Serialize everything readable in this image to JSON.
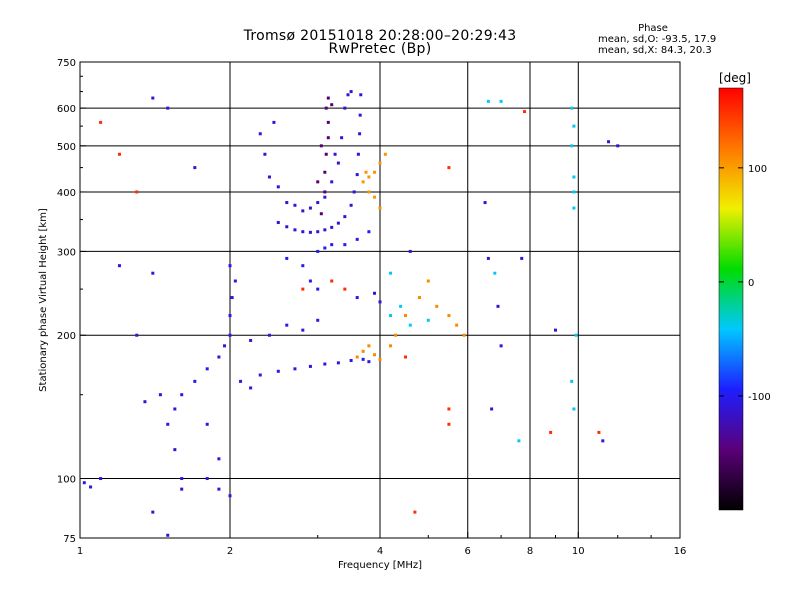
{
  "chart_data": {
    "type": "scatter",
    "title": "Tromsø 20151018 20:28:00–20:29:43",
    "subtitle": "RwPretec (Bp)",
    "xlabel": "Frequency [MHz]",
    "ylabel": "Stationary phase Virtual Height [km]",
    "x_scale": "log",
    "y_scale": "log",
    "xlim": [
      1,
      16
    ],
    "ylim": [
      75,
      750
    ],
    "x_ticks": [
      1,
      2,
      4,
      6,
      8,
      10,
      16
    ],
    "x_tick_labels": [
      "1",
      "2",
      "4",
      "6",
      "8",
      "10",
      "16"
    ],
    "y_ticks": [
      75,
      100,
      200,
      300,
      400,
      500,
      600,
      750
    ],
    "y_tick_labels": [
      "75",
      "100",
      "200",
      "300",
      "400",
      "500",
      "600",
      "750"
    ],
    "grid": true,
    "colorbar": {
      "label": "[deg]",
      "range": [
        -200,
        170
      ],
      "ticks": [
        100,
        0,
        -100
      ],
      "tick_labels": [
        "100",
        "0",
        "-100"
      ],
      "colors": [
        "#000000",
        "#5a0078",
        "#1e1eff",
        "#00c8ff",
        "#00dc00",
        "#f0f000",
        "#ff7800",
        "#ff0000"
      ]
    },
    "stats": {
      "header": "Phase",
      "line1": "mean, sd,O: -93.5, 17.9",
      "line2": "mean, sd,X:  84.3, 20.3"
    },
    "series": [
      {
        "trace": "upper-cusp-dense",
        "color_value": -110,
        "points": [
          [
            2.5,
            345
          ],
          [
            2.6,
            338
          ],
          [
            2.7,
            333
          ],
          [
            2.8,
            330
          ],
          [
            2.9,
            329
          ],
          [
            3.0,
            330
          ],
          [
            3.1,
            333
          ],
          [
            3.2,
            337
          ],
          [
            3.3,
            344
          ],
          [
            3.4,
            355
          ],
          [
            3.5,
            375
          ],
          [
            3.55,
            400
          ],
          [
            3.6,
            435
          ],
          [
            3.62,
            480
          ],
          [
            3.64,
            530
          ],
          [
            3.65,
            580
          ],
          [
            3.66,
            640
          ],
          [
            3.4,
            600
          ],
          [
            3.45,
            640
          ],
          [
            3.5,
            650
          ],
          [
            3.3,
            460
          ],
          [
            3.35,
            520
          ],
          [
            3.2,
            420
          ],
          [
            3.25,
            480
          ],
          [
            3.1,
            390
          ],
          [
            3.0,
            380
          ],
          [
            2.9,
            370
          ],
          [
            2.8,
            365
          ],
          [
            2.7,
            375
          ],
          [
            2.6,
            380
          ],
          [
            2.5,
            410
          ],
          [
            2.4,
            430
          ],
          [
            2.35,
            480
          ],
          [
            2.3,
            530
          ],
          [
            2.45,
            560
          ]
        ]
      },
      {
        "trace": "upper-cusp-purple",
        "color_value": -150,
        "points": [
          [
            3.05,
            360
          ],
          [
            3.1,
            400
          ],
          [
            3.1,
            440
          ],
          [
            3.12,
            480
          ],
          [
            3.15,
            520
          ],
          [
            3.15,
            560
          ],
          [
            3.12,
            600
          ],
          [
            3.15,
            630
          ],
          [
            3.2,
            610
          ],
          [
            3.0,
            420
          ],
          [
            3.05,
            500
          ]
        ]
      },
      {
        "trace": "lower-trace",
        "color_value": -105,
        "points": [
          [
            1.5,
            130
          ],
          [
            1.55,
            140
          ],
          [
            1.6,
            150
          ],
          [
            1.7,
            160
          ],
          [
            1.8,
            170
          ],
          [
            1.9,
            180
          ],
          [
            1.95,
            190
          ],
          [
            2.0,
            200
          ],
          [
            2.0,
            220
          ],
          [
            2.02,
            240
          ],
          [
            2.05,
            260
          ],
          [
            2.0,
            280
          ],
          [
            2.1,
            160
          ],
          [
            2.2,
            155
          ],
          [
            2.3,
            165
          ],
          [
            2.5,
            168
          ],
          [
            2.7,
            170
          ],
          [
            2.9,
            172
          ],
          [
            3.1,
            174
          ],
          [
            3.3,
            175
          ],
          [
            3.5,
            177
          ],
          [
            3.7,
            178
          ],
          [
            3.8,
            176
          ],
          [
            2.2,
            195
          ],
          [
            2.4,
            200
          ],
          [
            2.6,
            210
          ],
          [
            2.8,
            205
          ],
          [
            3.0,
            215
          ],
          [
            1.6,
            100
          ],
          [
            1.8,
            100
          ],
          [
            1.9,
            95
          ],
          [
            2.0,
            92
          ],
          [
            1.02,
            98
          ],
          [
            1.05,
            96
          ],
          [
            1.1,
            100
          ]
        ]
      },
      {
        "trace": "mid-trace",
        "color_value": -100,
        "points": [
          [
            3.0,
            300
          ],
          [
            3.1,
            305
          ],
          [
            3.2,
            310
          ],
          [
            3.4,
            310
          ],
          [
            3.6,
            318
          ],
          [
            3.8,
            330
          ],
          [
            2.6,
            290
          ],
          [
            2.8,
            280
          ],
          [
            2.9,
            260
          ],
          [
            3.0,
            250
          ]
        ]
      },
      {
        "trace": "x-mode-upper",
        "color_value": 105,
        "points": [
          [
            3.7,
            420
          ],
          [
            3.8,
            430
          ],
          [
            3.9,
            440
          ],
          [
            4.0,
            460
          ],
          [
            4.1,
            480
          ],
          [
            3.8,
            400
          ],
          [
            3.9,
            390
          ],
          [
            4.0,
            370
          ],
          [
            3.75,
            440
          ]
        ]
      },
      {
        "trace": "x-mode-lower",
        "color_value": 110,
        "points": [
          [
            3.6,
            180
          ],
          [
            3.7,
            185
          ],
          [
            3.8,
            190
          ],
          [
            3.9,
            182
          ],
          [
            4.0,
            178
          ],
          [
            4.2,
            190
          ],
          [
            4.5,
            220
          ],
          [
            4.8,
            240
          ],
          [
            5.0,
            260
          ],
          [
            5.2,
            230
          ],
          [
            5.5,
            220
          ],
          [
            5.7,
            210
          ],
          [
            5.9,
            200
          ],
          [
            4.3,
            200
          ]
        ]
      },
      {
        "trace": "cyan-scatter",
        "color_value": -40,
        "points": [
          [
            4.2,
            220
          ],
          [
            4.4,
            230
          ],
          [
            4.6,
            210
          ],
          [
            5.0,
            215
          ],
          [
            9.7,
            600
          ],
          [
            9.8,
            550
          ],
          [
            9.7,
            500
          ],
          [
            9.8,
            430
          ],
          [
            9.8,
            400
          ],
          [
            9.8,
            370
          ],
          [
            9.9,
            200
          ],
          [
            9.7,
            160
          ],
          [
            9.8,
            140
          ],
          [
            7.6,
            120
          ],
          [
            6.6,
            620
          ],
          [
            7.0,
            620
          ],
          [
            6.8,
            270
          ],
          [
            4.2,
            270
          ]
        ]
      },
      {
        "trace": "warm-scatter",
        "color_value": 150,
        "points": [
          [
            1.1,
            560
          ],
          [
            1.2,
            480
          ],
          [
            1.3,
            400
          ],
          [
            2.8,
            250
          ],
          [
            3.2,
            260
          ],
          [
            3.4,
            250
          ],
          [
            4.5,
            180
          ],
          [
            5.5,
            450
          ],
          [
            4.7,
            85
          ],
          [
            5.5,
            140
          ],
          [
            5.5,
            130
          ],
          [
            7.8,
            590
          ],
          [
            11.0,
            125
          ],
          [
            8.8,
            125
          ]
        ]
      },
      {
        "trace": "sparse-blue",
        "color_value": -110,
        "points": [
          [
            1.4,
            630
          ],
          [
            1.5,
            600
          ],
          [
            1.2,
            280
          ],
          [
            1.3,
            200
          ],
          [
            1.4,
            270
          ],
          [
            1.4,
            85
          ],
          [
            1.5,
            76
          ],
          [
            1.35,
            145
          ],
          [
            1.45,
            150
          ],
          [
            1.55,
            115
          ],
          [
            1.6,
            95
          ],
          [
            1.7,
            450
          ],
          [
            1.8,
            130
          ],
          [
            1.9,
            110
          ],
          [
            3.6,
            240
          ],
          [
            3.9,
            245
          ],
          [
            4.0,
            235
          ],
          [
            4.6,
            300
          ],
          [
            6.5,
            380
          ],
          [
            6.6,
            290
          ],
          [
            6.9,
            230
          ],
          [
            7.0,
            190
          ],
          [
            7.7,
            290
          ],
          [
            9.0,
            205
          ],
          [
            11.5,
            510
          ],
          [
            12.0,
            500
          ],
          [
            11.2,
            120
          ],
          [
            6.7,
            140
          ]
        ]
      }
    ]
  }
}
